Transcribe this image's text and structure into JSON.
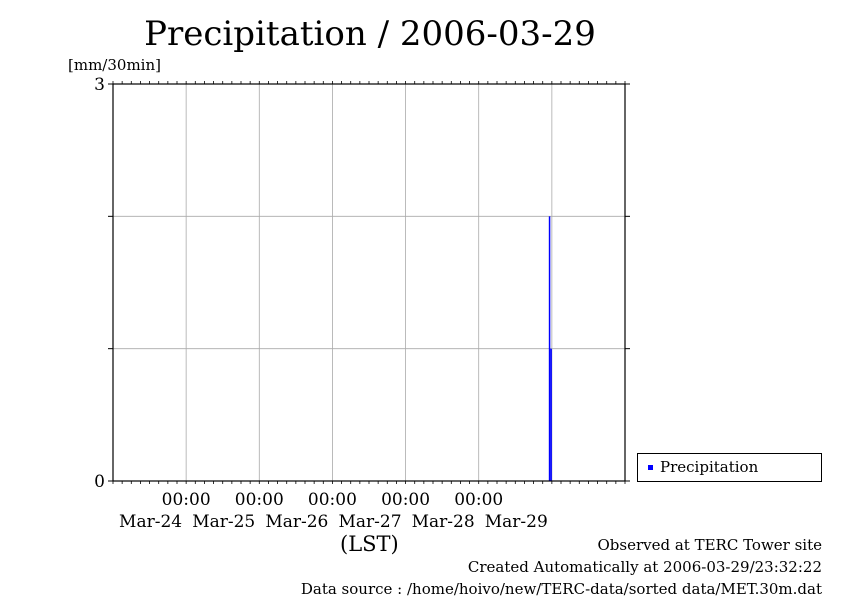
{
  "title": "Precipitation / 2006-03-29",
  "y_unit": "[mm/30min]",
  "x_axis_label": "(LST)",
  "legend": {
    "label": "Precipitation",
    "color": "#0000ff"
  },
  "footer": {
    "line1": "Observed at TERC Tower site",
    "line2": "Created Automatically at 2006-03-29/23:32:22",
    "line3": "Data source : /home/hoivo/new/TERC-data/sorted  data/MET.30m.dat"
  },
  "chart_data": {
    "type": "bar",
    "title": "Precipitation / 2006-03-29",
    "ylabel": "[mm/30min]",
    "xlabel": "(LST)",
    "ylim": [
      0,
      3
    ],
    "y_tick_labels": [
      {
        "value": 0,
        "label": "0"
      },
      {
        "value": 3,
        "label": "3"
      }
    ],
    "y_gridlines": [
      1,
      2
    ],
    "xlim": [
      "2006-03-23 00:00",
      "2006-03-30 00:00"
    ],
    "x_ticks": [
      {
        "time": "2006-03-24 00:00",
        "time_label": "00:00",
        "date_label": "Mar-24"
      },
      {
        "time": "2006-03-25 00:00",
        "time_label": "00:00",
        "date_label": "Mar-25"
      },
      {
        "time": "2006-03-26 00:00",
        "time_label": "00:00",
        "date_label": "Mar-26"
      },
      {
        "time": "2006-03-27 00:00",
        "time_label": "00:00",
        "date_label": "Mar-27"
      },
      {
        "time": "2006-03-28 00:00",
        "time_label": "00:00",
        "date_label": "Mar-28"
      },
      {
        "time": "2006-03-29 00:00",
        "time_label": "",
        "date_label": "Mar-29"
      }
    ],
    "grid": true,
    "legend_position": "bottom-right, outside plot",
    "series": [
      {
        "name": "Precipitation",
        "color": "#0000ff",
        "points": [
          {
            "time": "2006-03-28 23:00",
            "value": 2
          },
          {
            "time": "2006-03-28 23:30",
            "value": 1
          }
        ]
      }
    ]
  }
}
